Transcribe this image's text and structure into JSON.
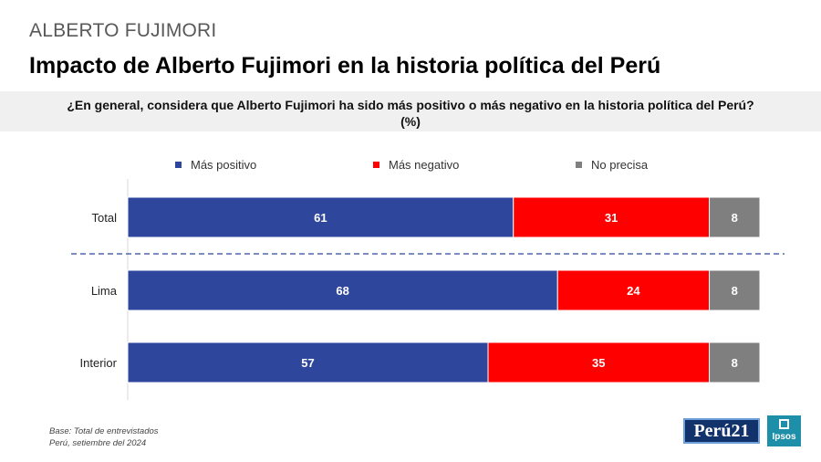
{
  "header": {
    "kicker": "ALBERTO FUJIMORI",
    "title": "Impacto de Alberto Fujimori en la historia política del Perú",
    "question_line1": "¿En general, considera que Alberto Fujimori ha sido más positivo o más negativo en la historia política del Perú?",
    "question_line2": "(%)"
  },
  "colors": {
    "positive": "#2e479c",
    "negative": "#ff0000",
    "no_precisa": "#7f7f7f"
  },
  "chart_data": {
    "type": "bar",
    "orientation": "horizontal",
    "stacked": true,
    "title": "Impacto de Alberto Fujimori en la historia política del Perú",
    "categories": [
      "Total",
      "Lima",
      "Interior"
    ],
    "series": [
      {
        "name": "Más positivo",
        "values": [
          61,
          68,
          57
        ]
      },
      {
        "name": "Más negativo",
        "values": [
          31,
          24,
          35
        ]
      },
      {
        "name": "No precisa",
        "values": [
          8,
          8,
          8
        ]
      }
    ],
    "xlim": [
      0,
      100
    ],
    "unit": "%",
    "legend": "top",
    "separator_after": "Total"
  },
  "footer": {
    "base": "Base: Total de entrevistados",
    "date": "Perú, setiembre del 2024",
    "logo_peru21": "Perú21",
    "logo_ipsos": "Ipsos"
  }
}
